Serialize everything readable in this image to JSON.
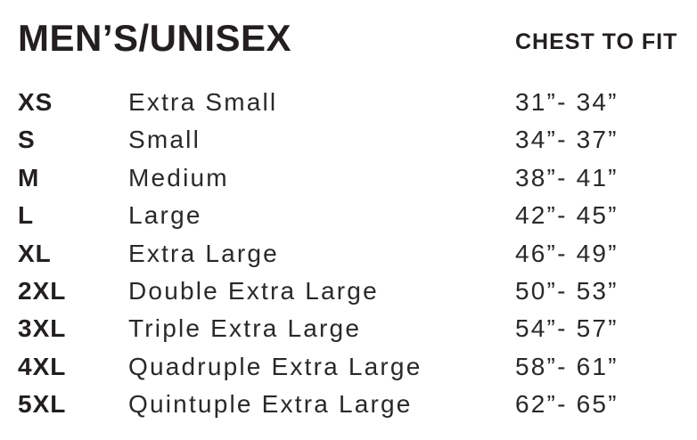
{
  "header": {
    "title": "MEN’S/UNISEX",
    "column_header": "CHEST TO FIT"
  },
  "size_table": {
    "rows": [
      {
        "code": "XS",
        "name": "Extra Small",
        "chest": "31”- 34”"
      },
      {
        "code": "S",
        "name": "Small",
        "chest": "34”- 37”"
      },
      {
        "code": "M",
        "name": "Medium",
        "chest": "38”- 41”"
      },
      {
        "code": "L",
        "name": "Large",
        "chest": "42”- 45”"
      },
      {
        "code": "XL",
        "name": "Extra Large",
        "chest": "46”- 49”"
      },
      {
        "code": "2XL",
        "name": "Double Extra Large",
        "chest": "50”- 53”"
      },
      {
        "code": "3XL",
        "name": "Triple Extra Large",
        "chest": "54”- 57”"
      },
      {
        "code": "4XL",
        "name": "Quadruple Extra Large",
        "chest": "58”- 61”"
      },
      {
        "code": "5XL",
        "name": "Quintuple Extra Large",
        "chest": "62”- 65”"
      }
    ]
  },
  "colors": {
    "text": "#231f20",
    "background": "#ffffff"
  }
}
